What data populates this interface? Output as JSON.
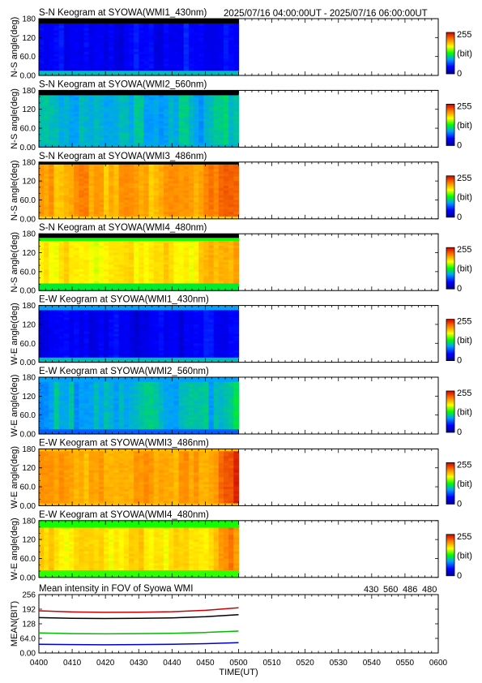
{
  "header": {
    "time_range": "2025/07/16 04:00:00UT - 2025/07/16 06:00:00UT"
  },
  "colors": {
    "s430": "#0000cc",
    "s560": "#00bb00",
    "s486": "#cc0000",
    "s480": "#000000"
  },
  "chart_data": [
    {
      "type": "heatmap",
      "title": "S-N Keogram at SYOWA(WMI1_430nm)",
      "ylabel": "N-S angle(deg)",
      "yticks": [
        "180",
        "120",
        "60.0",
        "0.00"
      ],
      "ylim": [
        0,
        180
      ],
      "data_until": "0500",
      "colorbar": {
        "max": "255",
        "unit": "(bit)",
        "min": "0"
      },
      "level": 40,
      "edge_low": 100,
      "edge_high": 0,
      "edge_width": 5,
      "top_dark": 6,
      "right_boost": 0
    },
    {
      "type": "heatmap",
      "title": "S-N Keogram at SYOWA(WMI2_560nm)",
      "ylabel": "N-S angle(deg)",
      "yticks": [
        "180",
        "120",
        "60.0",
        "0.00"
      ],
      "ylim": [
        0,
        180
      ],
      "data_until": "0500",
      "colorbar": {
        "max": "255",
        "unit": "(bit)",
        "min": "0"
      },
      "level": 95,
      "edge_low": 95,
      "edge_high": 0,
      "edge_width": 3,
      "top_dark": 6,
      "right_boost": 10
    },
    {
      "type": "heatmap",
      "title": "S-N Keogram at SYOWA(WMI3_486nm)",
      "ylabel": "N-S angle(deg)",
      "yticks": [
        "180",
        "120",
        "60.0",
        "0.00"
      ],
      "ylim": [
        0,
        180
      ],
      "data_until": "0500",
      "colorbar": {
        "max": "255",
        "unit": "(bit)",
        "min": "0"
      },
      "level": 200,
      "edge_low": 180,
      "edge_high": 190,
      "edge_width": 3,
      "top_dark": 3,
      "right_boost": 25
    },
    {
      "type": "heatmap",
      "title": "S-N Keogram at SYOWA(WMI4_480nm)",
      "ylabel": "N-S angle(deg)",
      "yticks": [
        "180",
        "120",
        "60.0",
        "0.00"
      ],
      "ylim": [
        0,
        180
      ],
      "data_until": "0500",
      "colorbar": {
        "max": "255",
        "unit": "(bit)",
        "min": "0"
      },
      "level": 175,
      "edge_low": 120,
      "edge_high": 130,
      "edge_width": 8,
      "top_dark": 5,
      "right_boost": 30
    },
    {
      "type": "heatmap",
      "title": "E-W Keogram at SYOWA(WMI1_430nm)",
      "ylabel": "W-E angle(deg)",
      "yticks": [
        "180",
        "120",
        "60.0",
        "0.00"
      ],
      "ylim": [
        0,
        180
      ],
      "data_until": "0500",
      "colorbar": {
        "max": "255",
        "unit": "(bit)",
        "min": "0"
      },
      "level": 40,
      "edge_low": 100,
      "edge_high": 90,
      "edge_width": 6,
      "top_dark": 0,
      "right_boost": 0
    },
    {
      "type": "heatmap",
      "title": "E-W Keogram at SYOWA(WMI2_560nm)",
      "ylabel": "W-E angle(deg)",
      "yticks": [
        "180",
        "120",
        "60.0",
        "0.00"
      ],
      "ylim": [
        0,
        180
      ],
      "data_until": "0500",
      "colorbar": {
        "max": "255",
        "unit": "(bit)",
        "min": "0"
      },
      "level": 95,
      "edge_low": 70,
      "edge_high": 90,
      "edge_width": 5,
      "top_dark": 0,
      "right_boost": 10
    },
    {
      "type": "heatmap",
      "title": "E-W Keogram at SYOWA(WMI3_486nm)",
      "ylabel": "W-E angle(deg)",
      "yticks": [
        "180",
        "120",
        "60.0",
        "0.00"
      ],
      "ylim": [
        0,
        180
      ],
      "data_until": "0500",
      "colorbar": {
        "max": "255",
        "unit": "(bit)",
        "min": "0"
      },
      "level": 200,
      "edge_low": 190,
      "edge_high": 190,
      "edge_width": 3,
      "top_dark": 0,
      "right_boost": 30
    },
    {
      "type": "heatmap",
      "title": "E-W Keogram at SYOWA(WMI4_480nm)",
      "ylabel": "W-E angle(deg)",
      "yticks": [
        "180",
        "120",
        "60.0",
        "0.00"
      ],
      "ylim": [
        0,
        180
      ],
      "data_until": "0500",
      "colorbar": {
        "max": "255",
        "unit": "(bit)",
        "min": "0"
      },
      "level": 178,
      "edge_low": 135,
      "edge_high": 130,
      "edge_width": 8,
      "top_dark": 0,
      "right_boost": 30
    },
    {
      "type": "line",
      "title": "Mean intensity in FOV of Syowa WMI",
      "ylabel": "MEAN(BIT)",
      "xlabel": "TIME(UT)",
      "ylim": [
        0,
        256
      ],
      "yticks": [
        "256",
        "192",
        "128",
        "64.0",
        "0.00"
      ],
      "categories": [
        "0400",
        "0410",
        "0420",
        "0430",
        "0440",
        "0450",
        "0500",
        "0510",
        "0520",
        "0530",
        "0540",
        "0550",
        "0600"
      ],
      "legend": [
        "430",
        "560",
        "486",
        "480"
      ],
      "series": [
        {
          "name": "430",
          "x": [
            0,
            10,
            20,
            30,
            40,
            50,
            60
          ],
          "values": [
            38,
            37,
            36,
            37,
            38,
            41,
            45
          ]
        },
        {
          "name": "560",
          "x": [
            0,
            10,
            20,
            30,
            40,
            50,
            60
          ],
          "values": [
            88,
            85,
            84,
            85,
            86,
            90,
            96
          ]
        },
        {
          "name": "486",
          "x": [
            0,
            10,
            20,
            30,
            40,
            50,
            60
          ],
          "values": [
            185,
            180,
            178,
            179,
            181,
            187,
            198
          ]
        },
        {
          "name": "480",
          "x": [
            0,
            10,
            20,
            30,
            40,
            50,
            60
          ],
          "values": [
            155,
            152,
            151,
            152,
            154,
            159,
            168
          ]
        }
      ]
    }
  ]
}
